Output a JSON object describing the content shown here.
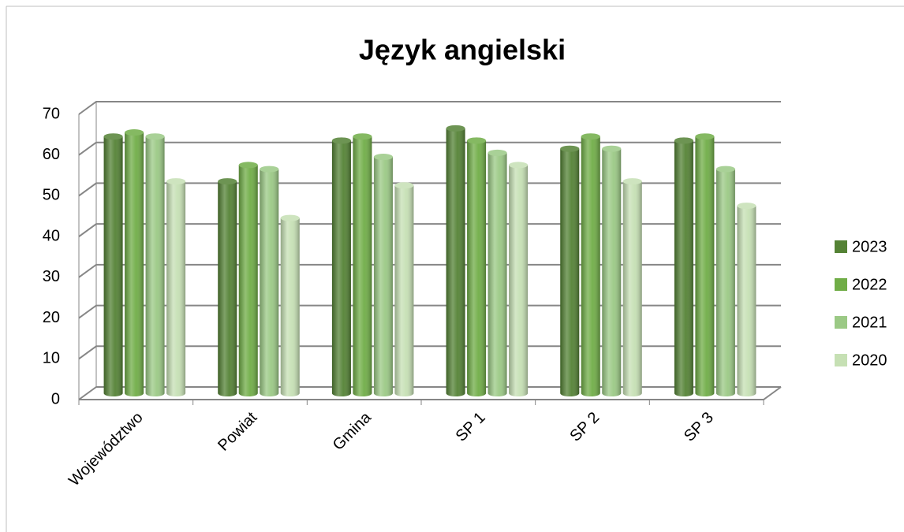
{
  "chart_data": {
    "type": "bar3d",
    "title": "Język angielski",
    "categories": [
      "Województwo",
      "Powiat",
      "Gmina",
      "SP 1",
      "SP 2",
      "SP 3"
    ],
    "series": [
      {
        "name": "2023",
        "color": "#548235",
        "values": [
          63,
          52,
          62,
          65,
          60,
          62
        ]
      },
      {
        "name": "2022",
        "color": "#70ad47",
        "values": [
          64,
          56,
          63,
          62,
          63,
          63
        ]
      },
      {
        "name": "2021",
        "color": "#9bc985",
        "values": [
          63,
          55,
          58,
          59,
          60,
          55
        ]
      },
      {
        "name": "2020",
        "color": "#c6e0b4",
        "values": [
          52,
          43,
          51,
          56,
          52,
          46
        ]
      }
    ],
    "ylim": [
      0,
      70
    ],
    "yticks": [
      0,
      10,
      20,
      30,
      40,
      50,
      60,
      70
    ],
    "grid": true,
    "legend": "right"
  }
}
